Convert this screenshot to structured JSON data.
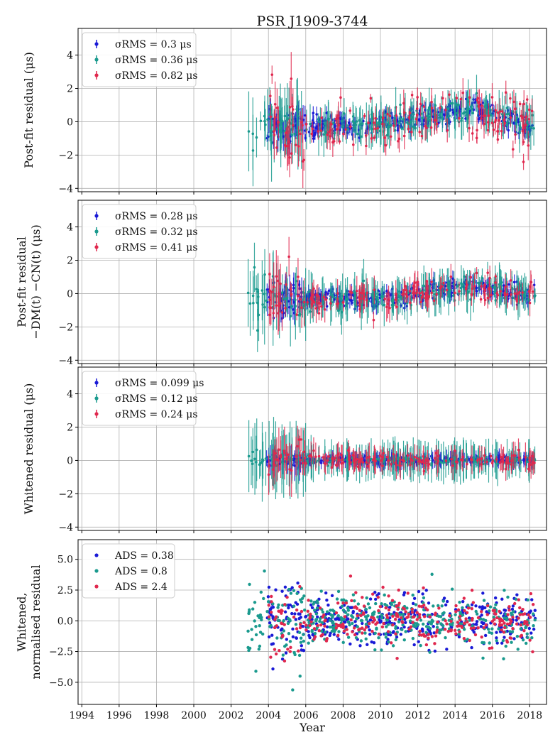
{
  "chart_data": {
    "type": "scatter",
    "title": "PSR J1909-3744",
    "xlabel": "Year",
    "xlim": [
      1993.8,
      2018.9
    ],
    "xticks": [
      "1994",
      "1996",
      "1998",
      "2000",
      "2002",
      "2004",
      "2006",
      "2008",
      "2010",
      "2012",
      "2014",
      "2016",
      "2018"
    ],
    "colors": {
      "blue": "#1a1ad6",
      "teal": "#1a9a8e",
      "red": "#e0284e"
    },
    "panels": [
      {
        "ylabel": [
          "Post-fit residual (μs)"
        ],
        "ylim": [
          -4.2,
          5.6
        ],
        "yticks": [
          "−4",
          "−2",
          "0",
          "2",
          "4"
        ],
        "yvals": [
          -4,
          -2,
          0,
          2,
          4
        ],
        "errorbars": true,
        "legend": [
          "σRMS = 0.3 μs",
          "σRMS = 0.36 μs",
          "σRMS = 0.82 μs"
        ],
        "series": [
          {
            "name": "blue",
            "color": "#1a1ad6",
            "x_range": [
              2003.9,
              2018.3
            ],
            "n": 320,
            "sigma": 0.3,
            "err": 0.35,
            "trend": "drift"
          },
          {
            "name": "teal",
            "color": "#1a9a8e",
            "x_range": [
              2002.9,
              2018.3
            ],
            "n": 230,
            "sigma": 0.36,
            "err": 0.9,
            "trend": "drift"
          },
          {
            "name": "red",
            "color": "#e0284e",
            "x_range": [
              2004.0,
              2018.3
            ],
            "n": 170,
            "sigma": 0.82,
            "err": 0.6,
            "trend": "drift"
          }
        ]
      },
      {
        "ylabel": [
          "Post-fit residual",
          "−DM(t) −CN(t) (μs)"
        ],
        "ylim": [
          -4.2,
          5.6
        ],
        "yticks": [
          "−4",
          "−2",
          "0",
          "2",
          "4"
        ],
        "yvals": [
          -4,
          -2,
          0,
          2,
          4
        ],
        "errorbars": true,
        "legend": [
          "σRMS = 0.28 μs",
          "σRMS = 0.32 μs",
          "σRMS = 0.41 μs"
        ],
        "series": [
          {
            "name": "blue",
            "color": "#1a1ad6",
            "x_range": [
              2003.9,
              2018.3
            ],
            "n": 320,
            "sigma": 0.28,
            "err": 0.35,
            "trend": "drift_small"
          },
          {
            "name": "teal",
            "color": "#1a9a8e",
            "x_range": [
              2002.9,
              2018.3
            ],
            "n": 230,
            "sigma": 0.32,
            "err": 0.9,
            "trend": "drift_small"
          },
          {
            "name": "red",
            "color": "#e0284e",
            "x_range": [
              2004.0,
              2018.3
            ],
            "n": 170,
            "sigma": 0.41,
            "err": 0.6,
            "trend": "drift_small"
          }
        ]
      },
      {
        "ylabel": [
          "Whitened residual (μs)"
        ],
        "ylim": [
          -4.2,
          5.6
        ],
        "yticks": [
          "−4",
          "−2",
          "0",
          "2",
          "4"
        ],
        "yvals": [
          -4,
          -2,
          0,
          2,
          4
        ],
        "errorbars": true,
        "legend": [
          "σRMS = 0.099 μs",
          "σRMS = 0.12 μs",
          "σRMS = 0.24 μs"
        ],
        "series": [
          {
            "name": "blue",
            "color": "#1a1ad6",
            "x_range": [
              2003.9,
              2018.3
            ],
            "n": 320,
            "sigma": 0.1,
            "err": 0.35,
            "trend": "flat"
          },
          {
            "name": "teal",
            "color": "#1a9a8e",
            "x_range": [
              2002.9,
              2018.3
            ],
            "n": 230,
            "sigma": 0.12,
            "err": 0.9,
            "trend": "flat"
          },
          {
            "name": "red",
            "color": "#e0284e",
            "x_range": [
              2004.0,
              2018.3
            ],
            "n": 170,
            "sigma": 0.24,
            "err": 0.6,
            "trend": "flat"
          }
        ]
      },
      {
        "ylabel": [
          "Whitened,",
          "normalised residual"
        ],
        "ylim": [
          -6.8,
          6.6
        ],
        "yticks": [
          "−5.0",
          "−2.5",
          "0.0",
          "2.5",
          "5.0"
        ],
        "yvals": [
          -5,
          -2.5,
          0,
          2.5,
          5
        ],
        "errorbars": false,
        "legend": [
          "ADS = 0.38",
          "ADS = 0.8",
          "ADS = 2.4"
        ],
        "series": [
          {
            "name": "blue",
            "color": "#1a1ad6",
            "x_range": [
              2003.9,
              2018.3
            ],
            "n": 420,
            "sigma": 1.0,
            "trend": "flat"
          },
          {
            "name": "teal",
            "color": "#1a9a8e",
            "x_range": [
              2002.9,
              2018.3
            ],
            "n": 420,
            "sigma": 1.0,
            "trend": "flat"
          },
          {
            "name": "red",
            "color": "#e0284e",
            "x_range": [
              2004.0,
              2018.3
            ],
            "n": 300,
            "sigma": 1.1,
            "trend": "flat"
          }
        ]
      }
    ]
  }
}
